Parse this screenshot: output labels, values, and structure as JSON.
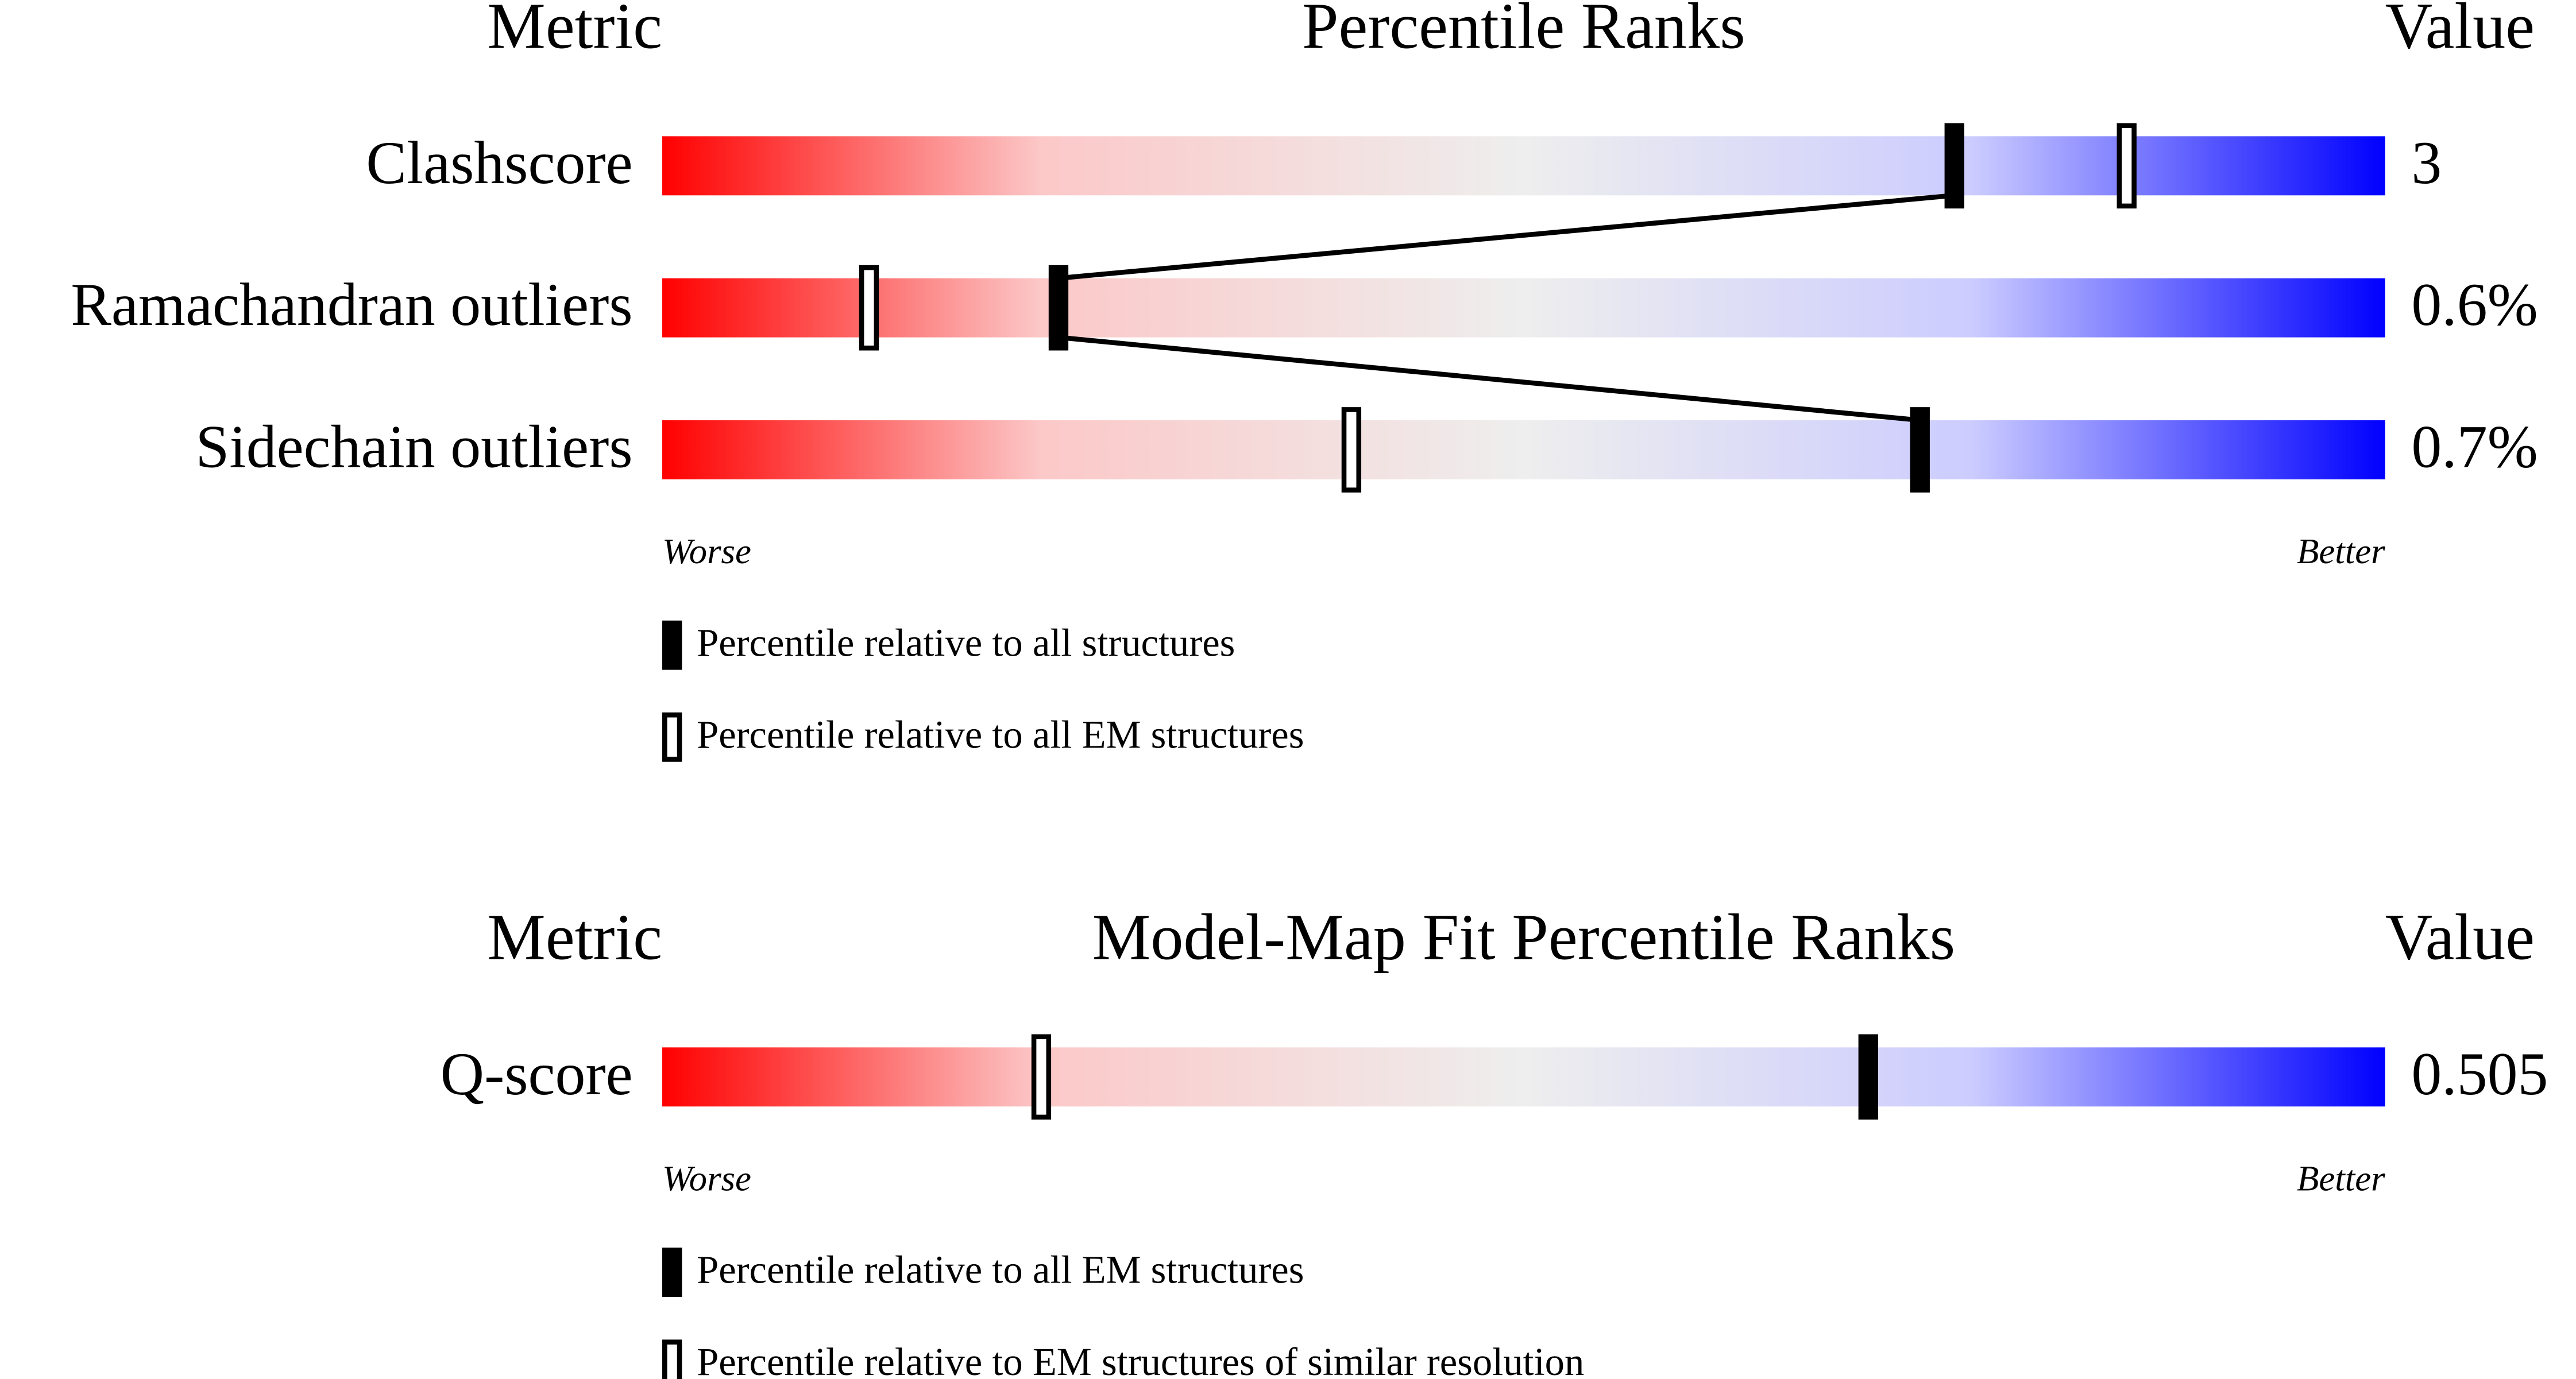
{
  "chart_data": [
    {
      "type": "percentile",
      "metric_header": "Metric",
      "title": "Percentile Ranks",
      "value_header": "Value",
      "categories": [
        "Clashscore",
        "Ramachandran outliers",
        "Sidechain outliers"
      ],
      "printed_values": [
        "3",
        "0.6%",
        "0.7%"
      ],
      "xlim": [
        0,
        100
      ],
      "worse_label": "Worse",
      "better_label": "Better",
      "series": [
        {
          "name": "Percentile relative to all structures",
          "style": "filled",
          "connect": true,
          "values": [
            75,
            23,
            73
          ]
        },
        {
          "name": "Percentile relative to all EM structures",
          "style": "hollow",
          "connect": false,
          "values": [
            85,
            12,
            40
          ]
        }
      ]
    },
    {
      "type": "percentile",
      "metric_header": "Metric",
      "title": "Model-Map Fit Percentile Ranks",
      "value_header": "Value",
      "categories": [
        "Q-score"
      ],
      "printed_values": [
        "0.505"
      ],
      "xlim": [
        0,
        100
      ],
      "worse_label": "Worse",
      "better_label": "Better",
      "series": [
        {
          "name": "Percentile relative to all EM structures",
          "style": "filled",
          "connect": true,
          "values": [
            70
          ]
        },
        {
          "name": "Percentile relative to EM structures of similar resolution",
          "style": "hollow",
          "connect": false,
          "values": [
            22
          ]
        }
      ]
    }
  ]
}
